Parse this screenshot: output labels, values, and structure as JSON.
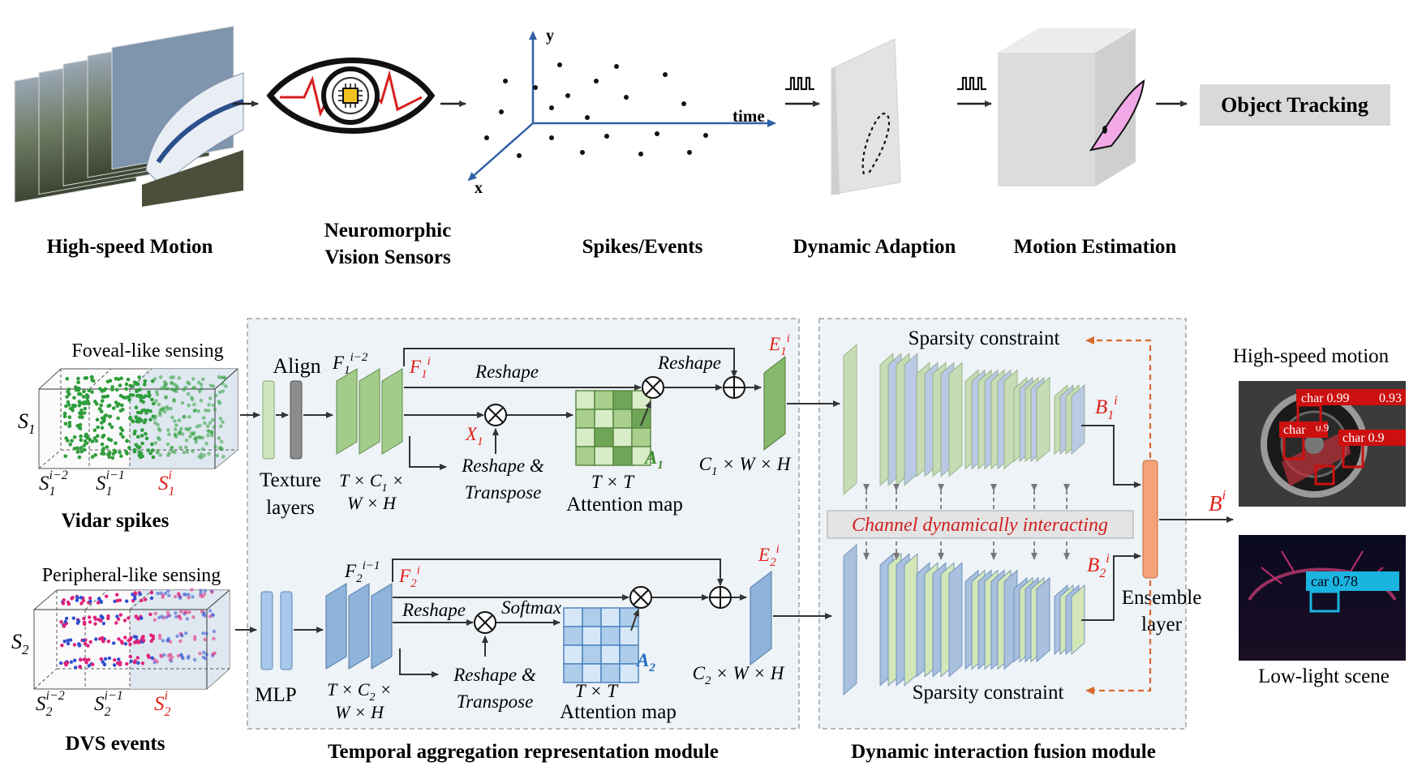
{
  "pipeline": {
    "stages": [
      {
        "label": "High-speed Motion"
      },
      {
        "label": "Neuromorphic"
      },
      {
        "label": "Vision Sensors"
      },
      {
        "label": "Spikes/Events"
      },
      {
        "label": "Dynamic Adaption"
      },
      {
        "label": "Motion Estimation"
      }
    ],
    "axes": {
      "x": "x",
      "y": "y",
      "time": "time"
    },
    "output_box": "Object Tracking"
  },
  "left_inputs": {
    "top": {
      "sensing": "Foveal-like sensing",
      "stream": "S",
      "stream_sub": "1",
      "frames": [
        {
          "base": "S",
          "sub": "1",
          "sup": "i−2",
          "color": "#111111"
        },
        {
          "base": "S",
          "sub": "1",
          "sup": "i−1",
          "color": "#111111"
        },
        {
          "base": "S",
          "sub": "1",
          "sup": "i",
          "color": "#e0211a"
        }
      ],
      "name": "Vidar spikes",
      "dot_color": "#2f9e3c"
    },
    "bottom": {
      "sensing": "Peripheral-like sensing",
      "stream": "S",
      "stream_sub": "2",
      "frames": [
        {
          "base": "S",
          "sub": "2",
          "sup": "i−2",
          "color": "#111111"
        },
        {
          "base": "S",
          "sub": "2",
          "sup": "i−1",
          "color": "#111111"
        },
        {
          "base": "S",
          "sub": "2",
          "sup": "i",
          "color": "#e0211a"
        }
      ],
      "name": "DVS events",
      "dot_color": "#e0217a"
    }
  },
  "temporal_module": {
    "title": "Temporal aggregation representation module",
    "top": {
      "align": "Align",
      "texture1": "Texture",
      "texture2": "layers",
      "feat_prev": {
        "base": "F",
        "sub": "1",
        "sup": "i−2"
      },
      "feat_cur": {
        "base": "F",
        "sub": "1",
        "sup": "i"
      },
      "reshape1": "Reshape",
      "reshape2": "Reshape",
      "x": {
        "base": "X",
        "sub": "1"
      },
      "reshape_t1": "Reshape &",
      "reshape_t2": "Transpose",
      "dims1": "T × C",
      "dims1_sub": "1",
      "dims1_tail": " ×",
      "dims2": "W × H",
      "attn_tt": "T × T",
      "attn_label": "Attention map",
      "a": {
        "base": "A",
        "sub": "1"
      },
      "out_dims": "C",
      "out_dims_sub": "1",
      "out_dims_tail": " × W × H",
      "e": {
        "base": "E",
        "sub": "1",
        "sup": "i"
      }
    },
    "bottom": {
      "mlp": "MLP",
      "feat_prev": {
        "base": "F",
        "sub": "2",
        "sup": "i−1"
      },
      "feat_cur": {
        "base": "F",
        "sub": "2",
        "sup": "i"
      },
      "reshape1": "Reshape",
      "softmax": "Softmax",
      "reshape_t1": "Reshape &",
      "reshape_t2": "Transpose",
      "dims1": "T × C",
      "dims1_sub": "2",
      "dims1_tail": " ×",
      "dims2": "W × H",
      "attn_tt": "T × T",
      "attn_label": "Attention map",
      "a": {
        "base": "A",
        "sub": "2"
      },
      "out_dims": "C",
      "out_dims_sub": "2",
      "out_dims_tail": " × W × H",
      "e": {
        "base": "E",
        "sub": "2",
        "sup": "i"
      }
    }
  },
  "fusion_module": {
    "title": "Dynamic interaction fusion module",
    "sparsity_top": "Sparsity constraint",
    "sparsity_bottom": "Sparsity constraint",
    "channel_label": "Channel dynamically interacting",
    "b1": {
      "base": "B",
      "sub": "1",
      "sup": "i"
    },
    "b2": {
      "base": "B",
      "sub": "2",
      "sup": "i"
    },
    "b": {
      "base": "B",
      "sup": "i"
    },
    "ensemble1": "Ensemble",
    "ensemble2": "layer"
  },
  "results": {
    "top_label": "High-speed motion",
    "bottom_label": "Low-light scene",
    "detections_top": [
      "char 0.99",
      "0.93",
      "char",
      "0.9",
      "char 0.9"
    ],
    "detection_bottom": "car 0.78"
  },
  "colors": {
    "green": "#8fc27a",
    "blue": "#8fb4dc",
    "red": "#e0211a",
    "orange": "#d9692a",
    "ensemble": "#f4a277"
  }
}
